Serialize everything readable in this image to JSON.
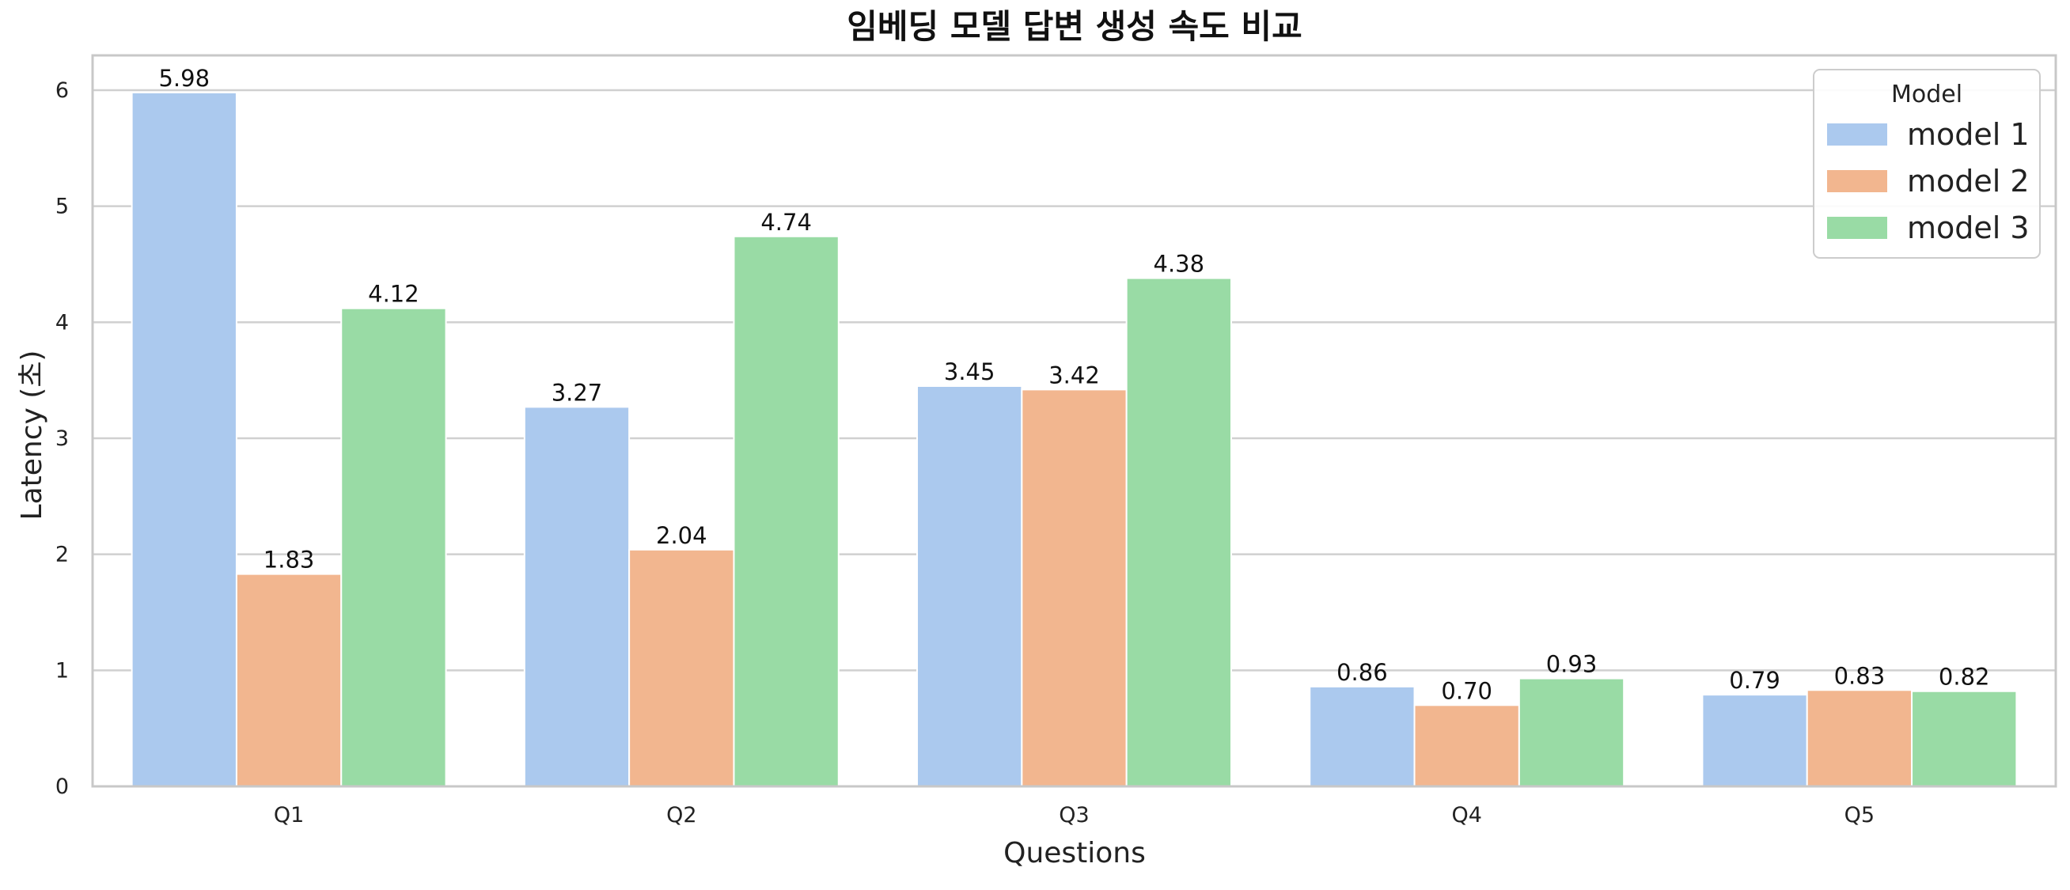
{
  "chart_data": {
    "type": "bar",
    "title": "임베딩 모델 답변 생성 속도 비교",
    "xlabel": "Questions",
    "ylabel": "Latency (초)",
    "categories": [
      "Q1",
      "Q2",
      "Q3",
      "Q4",
      "Q5"
    ],
    "series": [
      {
        "name": "model 1",
        "color": "#abc9ee",
        "values": [
          5.98,
          3.27,
          3.45,
          0.86,
          0.79
        ]
      },
      {
        "name": "model 2",
        "color": "#f2b68f",
        "values": [
          1.83,
          2.04,
          3.42,
          0.7,
          0.83
        ]
      },
      {
        "name": "model 3",
        "color": "#99dba5",
        "values": [
          4.12,
          4.74,
          4.38,
          0.93,
          0.82
        ]
      }
    ],
    "ylim": [
      0,
      6.3
    ],
    "yticks": [
      0,
      1,
      2,
      3,
      4,
      5,
      6
    ],
    "grid": true,
    "legend": {
      "title": "Model",
      "placement": "top-right"
    }
  }
}
